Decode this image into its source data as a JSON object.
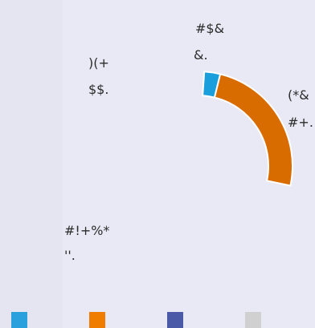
{
  "chart_data": {
    "type": "pie",
    "style": "donut, partially visible (cropped)",
    "slices": [
      {
        "name": "#$&",
        "value": 3,
        "color": "#1a9fdc"
      },
      {
        "name": "(*&",
        "value": 27,
        "color": "#d96c00"
      }
    ],
    "labels": {
      "top_line1": "#$&",
      "top_line2": "&.",
      "upper_left_line1": ")(+",
      "upper_left_line2": "$$.",
      "right_line1": "(*&",
      "right_line2": "#+.",
      "lower_left_line1": "#!+%*",
      "lower_left_line2": "''."
    },
    "legend": [
      {
        "color": "#2aa0dc"
      },
      {
        "color": "#f07d00"
      },
      {
        "color": "#4b5aa6"
      },
      {
        "color": "#d0d0d0"
      }
    ]
  }
}
